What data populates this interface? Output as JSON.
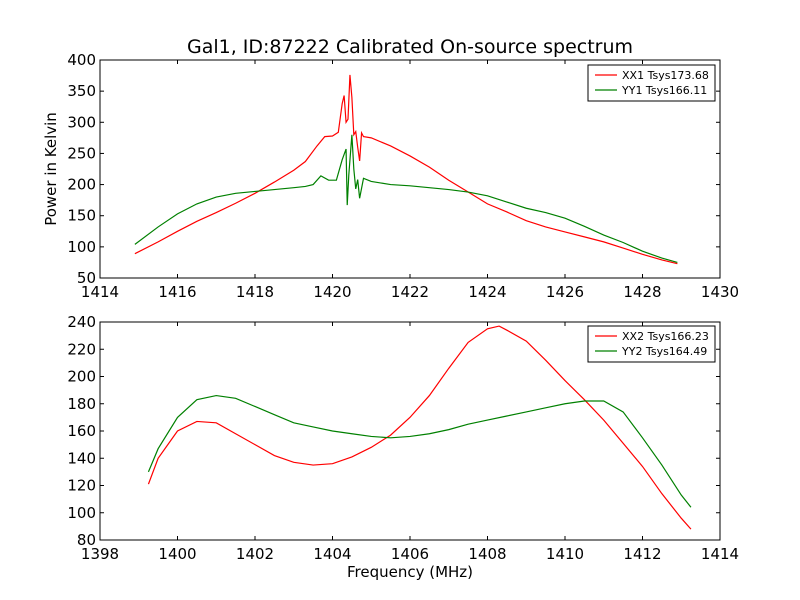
{
  "chart_data": [
    {
      "type": "line",
      "title": "Gal1, ID:87222 Calibrated On-source spectrum",
      "xlabel": "",
      "ylabel": "Power in Kelvin",
      "xlim": [
        1414,
        1430
      ],
      "ylim": [
        50,
        400
      ],
      "xticks": [
        1414,
        1416,
        1418,
        1420,
        1422,
        1424,
        1426,
        1428,
        1430
      ],
      "yticks": [
        50,
        100,
        150,
        200,
        250,
        300,
        350,
        400
      ],
      "legend_position": "top-right",
      "series": [
        {
          "name": "XX1 Tsys173.68",
          "color": "#ff0000",
          "x": [
            1414.9,
            1415.5,
            1416,
            1416.5,
            1417,
            1417.5,
            1418,
            1418.5,
            1419,
            1419.3,
            1419.6,
            1419.8,
            1420.0,
            1420.15,
            1420.25,
            1420.3,
            1420.35,
            1420.4,
            1420.45,
            1420.5,
            1420.55,
            1420.6,
            1420.65,
            1420.7,
            1420.75,
            1420.8,
            1421,
            1421.5,
            1422,
            1422.5,
            1423,
            1423.5,
            1424,
            1424.5,
            1425,
            1425.5,
            1426,
            1426.5,
            1427,
            1427.5,
            1428,
            1428.5,
            1428.9
          ],
          "y": [
            89,
            108,
            125,
            141,
            155,
            170,
            186,
            204,
            223,
            237,
            262,
            277,
            278,
            284,
            330,
            343,
            300,
            305,
            376,
            340,
            280,
            285,
            260,
            238,
            283,
            277,
            275,
            262,
            246,
            228,
            207,
            188,
            169,
            156,
            142,
            132,
            124,
            116,
            108,
            98,
            88,
            79,
            73
          ]
        },
        {
          "name": "YY1 Tsys166.11",
          "color": "#008000",
          "x": [
            1414.9,
            1415.5,
            1416,
            1416.5,
            1417,
            1417.5,
            1418,
            1418.5,
            1419,
            1419.3,
            1419.5,
            1419.7,
            1419.9,
            1420.1,
            1420.25,
            1420.35,
            1420.38,
            1420.42,
            1420.5,
            1420.55,
            1420.6,
            1420.65,
            1420.7,
            1420.8,
            1421,
            1421.5,
            1422,
            1422.5,
            1423,
            1423.5,
            1424,
            1424.5,
            1425,
            1425.5,
            1426,
            1426.5,
            1427,
            1427.5,
            1428,
            1428.5,
            1428.9
          ],
          "y": [
            104,
            132,
            153,
            169,
            180,
            186,
            189,
            192,
            195,
            197,
            200,
            214,
            207,
            207,
            240,
            257,
            167,
            215,
            280,
            225,
            193,
            208,
            178,
            210,
            205,
            200,
            198,
            195,
            192,
            188,
            182,
            172,
            162,
            155,
            146,
            133,
            119,
            107,
            93,
            82,
            75
          ]
        }
      ]
    },
    {
      "type": "line",
      "title": "",
      "xlabel": "Frequency (MHz)",
      "ylabel": "",
      "xlim": [
        1398,
        1414
      ],
      "ylim": [
        80,
        240
      ],
      "xticks": [
        1398,
        1400,
        1402,
        1404,
        1406,
        1408,
        1410,
        1412,
        1414
      ],
      "yticks": [
        80,
        100,
        120,
        140,
        160,
        180,
        200,
        220,
        240
      ],
      "legend_position": "top-right",
      "series": [
        {
          "name": "XX2 Tsys166.23",
          "color": "#ff0000",
          "x": [
            1399.25,
            1399.5,
            1400,
            1400.5,
            1401,
            1401.5,
            1402,
            1402.5,
            1403,
            1403.5,
            1404,
            1404.5,
            1405,
            1405.5,
            1406,
            1406.5,
            1407,
            1407.5,
            1408,
            1408.3,
            1408.5,
            1409,
            1409.5,
            1410,
            1410.5,
            1411,
            1411.5,
            1412,
            1412.5,
            1413,
            1413.25
          ],
          "y": [
            121,
            140,
            160,
            167,
            166,
            158,
            150,
            142,
            137,
            135,
            136,
            141,
            148,
            157,
            170,
            186,
            206,
            225,
            235,
            237,
            234,
            226,
            212,
            197,
            183,
            168,
            151,
            134,
            114,
            96,
            88
          ]
        },
        {
          "name": "YY2 Tsys164.49",
          "color": "#008000",
          "x": [
            1399.25,
            1399.5,
            1400,
            1400.5,
            1401,
            1401.5,
            1402,
            1402.5,
            1403,
            1403.5,
            1404,
            1404.5,
            1405,
            1405.5,
            1406,
            1406.5,
            1407,
            1407.5,
            1408,
            1408.5,
            1409,
            1409.5,
            1410,
            1410.5,
            1411,
            1411.5,
            1412,
            1412.5,
            1413,
            1413.25
          ],
          "y": [
            130,
            147,
            170,
            183,
            186,
            184,
            178,
            172,
            166,
            163,
            160,
            158,
            156,
            155,
            156,
            158,
            161,
            165,
            168,
            171,
            174,
            177,
            180,
            182,
            182,
            174,
            155,
            135,
            113,
            104
          ]
        }
      ]
    }
  ]
}
